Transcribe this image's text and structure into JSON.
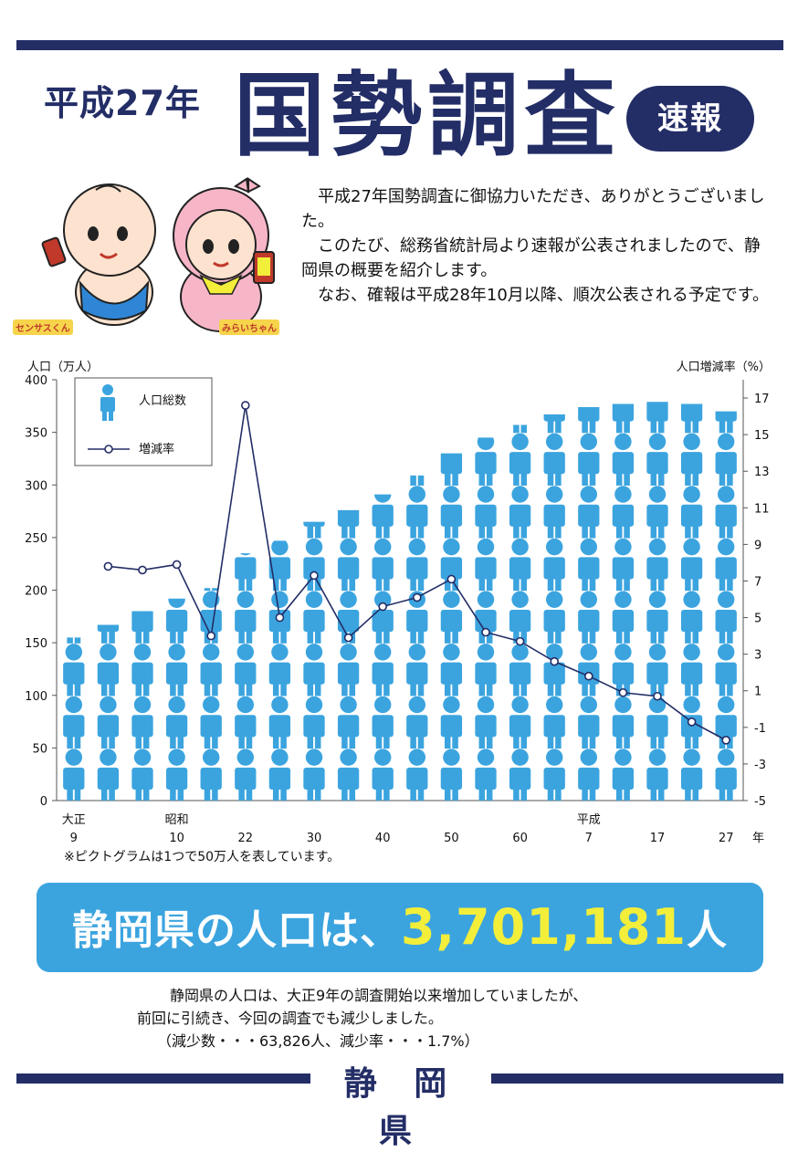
{
  "header": {
    "era": "平成27年",
    "title": "国勢調査",
    "badge": "速報"
  },
  "mascots": {
    "left_name": "センサスくん",
    "right_name": "みらいちゃん"
  },
  "intro": [
    "平成27年国勢調査に御協力いただき、ありがとうございました。",
    "このたび、総務省統計局より速報が公表されましたので、静岡県の概要を紹介します。",
    "なお、確報は平成28年10月以降、順次公表される予定です。"
  ],
  "chart_data": {
    "type": "bar",
    "ylabel": "人口（万人）",
    "y2label": "人口増減率（%）",
    "ylim": [
      0,
      400
    ],
    "y2lim": [
      -5,
      18
    ],
    "yticks": [
      0,
      50,
      100,
      150,
      200,
      250,
      300,
      350,
      400
    ],
    "y2ticks": [
      -5,
      -3,
      -1,
      1,
      3,
      5,
      7,
      9,
      11,
      13,
      15,
      17
    ],
    "xlabel": "年",
    "x_era_labels": [
      {
        "index": 0,
        "text": "大正"
      },
      {
        "index": 3,
        "text": "昭和"
      },
      {
        "index": 15,
        "text": "平成"
      }
    ],
    "x_tick_labels": [
      {
        "index": 0,
        "text": "9"
      },
      {
        "index": 3,
        "text": "10"
      },
      {
        "index": 5,
        "text": "22"
      },
      {
        "index": 7,
        "text": "30"
      },
      {
        "index": 9,
        "text": "40"
      },
      {
        "index": 11,
        "text": "50"
      },
      {
        "index": 13,
        "text": "60"
      },
      {
        "index": 15,
        "text": "7"
      },
      {
        "index": 17,
        "text": "17"
      },
      {
        "index": 19,
        "text": "27"
      }
    ],
    "legend": [
      "人口総数",
      "増減率"
    ],
    "legend_position": "top-left",
    "series": [
      {
        "name": "人口総数",
        "values": [
          155,
          167,
          180,
          192,
          202,
          235,
          247,
          265,
          276,
          291,
          309,
          330,
          345,
          357,
          367,
          374,
          377,
          379,
          377,
          370
        ]
      },
      {
        "name": "増減率",
        "values": [
          null,
          7.8,
          7.6,
          7.9,
          4.0,
          16.6,
          5.0,
          7.3,
          3.9,
          5.6,
          6.1,
          7.1,
          4.2,
          3.7,
          2.6,
          1.8,
          0.9,
          0.7,
          -0.7,
          -1.7
        ]
      }
    ],
    "colors": {
      "population": "#3ba4df",
      "rate_line": "#232d66"
    }
  },
  "note": "※ピクトグラムは1つで50万人を表しています。",
  "banner": {
    "prefix": "静岡県の人口は、",
    "number": "3,701,181",
    "suffix": "人"
  },
  "summary": {
    "line1": "静岡県の人口は、大正9年の調査開始以来増加していましたが、",
    "line2": "前回に引続き、今回の調査でも減少しました。",
    "line3": "（減少数・・・63,826人、減少率・・・1.7%）"
  },
  "footer": {
    "label": "静 岡 県"
  }
}
